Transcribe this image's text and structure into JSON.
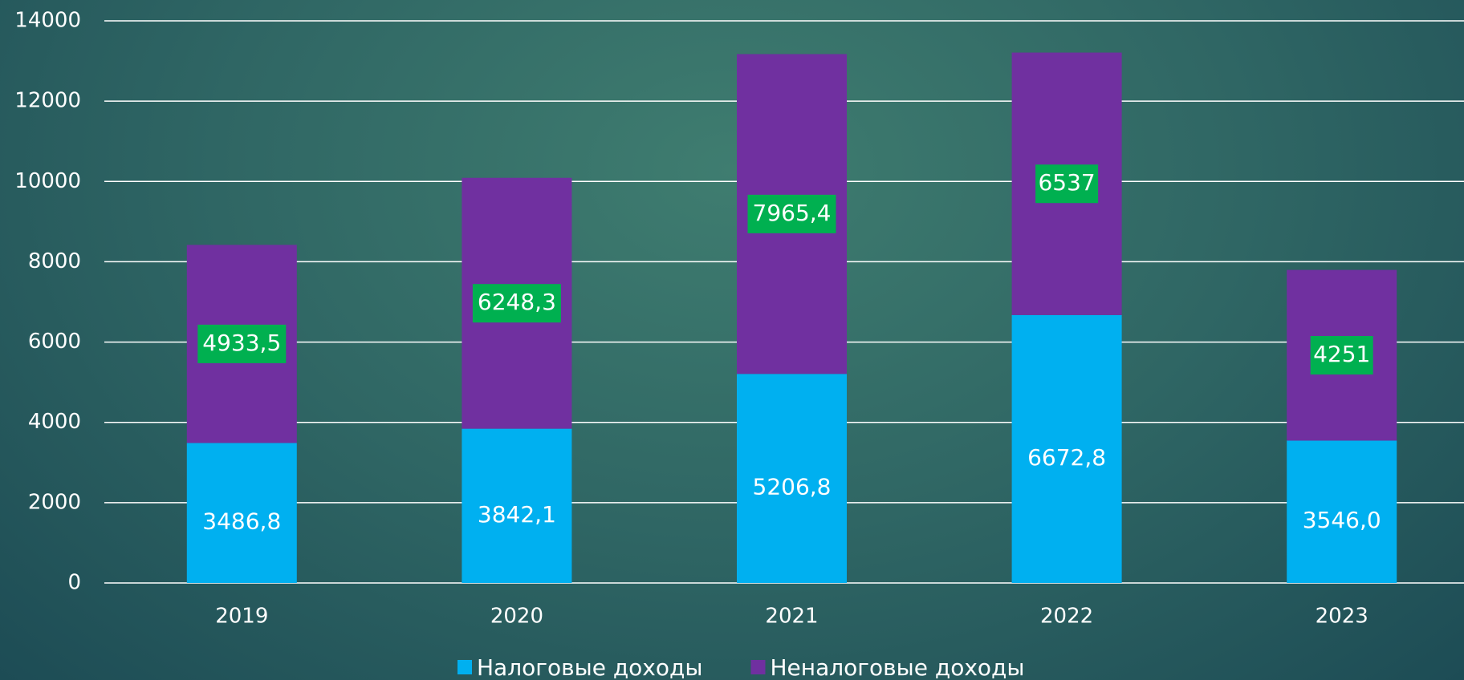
{
  "chart_data": {
    "type": "stacked_bar",
    "categories": [
      "2019",
      "2020",
      "2021",
      "2022",
      "2023"
    ],
    "series": [
      {
        "name": "Налоговые доходы",
        "color": "#00b0f0",
        "values": [
          3486.8,
          3842.1,
          5206.8,
          6672.8,
          3546.0
        ],
        "value_labels": [
          "3486,8",
          "3842,1",
          "5206,8",
          "6672,8",
          "3546,0"
        ]
      },
      {
        "name": "Неналоговые доходы",
        "color": "#7030a0",
        "values": [
          4933.5,
          6248.3,
          7965.4,
          6537,
          4251
        ],
        "value_labels": [
          "4933,5",
          "6248,3",
          "7965,4",
          "6537",
          "4251"
        ],
        "label_box_color": "#00b050"
      }
    ],
    "ylim": [
      0,
      14000
    ],
    "yticks": [
      0,
      2000,
      4000,
      6000,
      8000,
      10000,
      12000,
      14000
    ],
    "grid": true,
    "legend": "bottom"
  }
}
